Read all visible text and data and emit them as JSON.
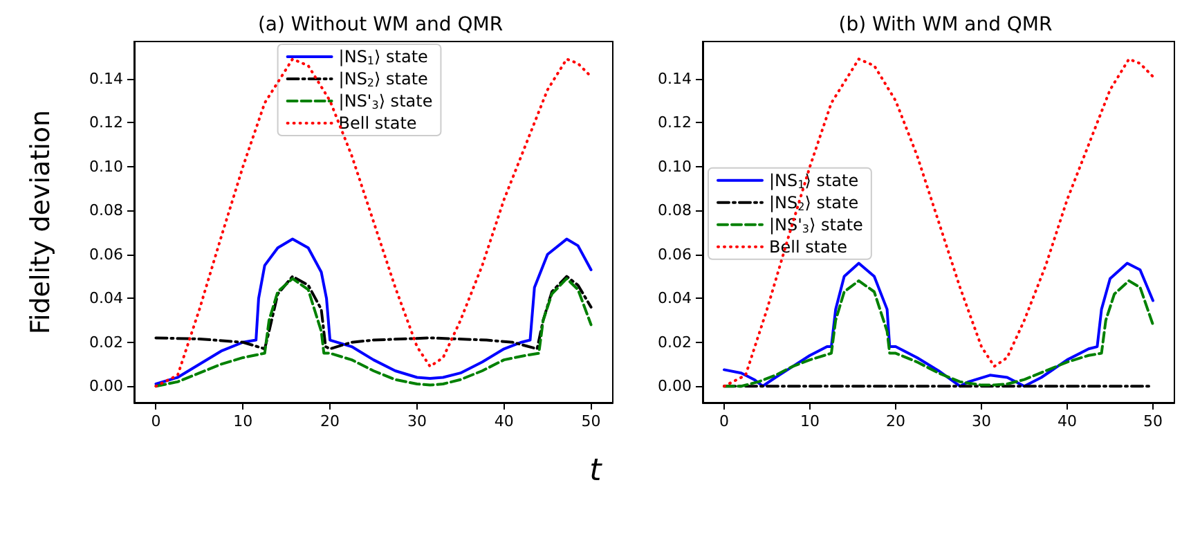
{
  "chart_data": [
    {
      "type": "line",
      "title": "(a) Without WM and QMR",
      "xlabel": "t",
      "ylabel": "Fidelity deviation",
      "xlim": [
        -2.5,
        52.5
      ],
      "ylim": [
        -0.0075,
        0.157
      ],
      "xticks": [
        0,
        10,
        20,
        30,
        40,
        50
      ],
      "yticks": [
        {
          "value": 0,
          "label": "0.00"
        },
        {
          "value": 0.02,
          "label": "0.02"
        },
        {
          "value": 0.04,
          "label": "0.04"
        },
        {
          "value": 0.06,
          "label": "0.06"
        },
        {
          "value": 0.08,
          "label": "0.08"
        },
        {
          "value": 0.1,
          "label": "0.10"
        },
        {
          "value": 0.12,
          "label": "0.12"
        },
        {
          "value": 0.14,
          "label": "0.14"
        }
      ],
      "grid": false,
      "legend": "top",
      "marker": "none",
      "series": [
        {
          "name": "|NS$_{1}$⟩ state",
          "color": "#0000ff",
          "line_style": "solid",
          "x": [
            0,
            2.5,
            5,
            7.5,
            10,
            11.5,
            11.8,
            12.5,
            14,
            15.7,
            17.5,
            19,
            19.6,
            20,
            22.5,
            25,
            27.5,
            30,
            31.5,
            33,
            35,
            37.5,
            40,
            42,
            43,
            43.5,
            45,
            47.2,
            48.5,
            50
          ],
          "values": [
            0.001,
            0.004,
            0.01,
            0.016,
            0.02,
            0.021,
            0.04,
            0.055,
            0.063,
            0.067,
            0.063,
            0.052,
            0.04,
            0.021,
            0.018,
            0.012,
            0.007,
            0.004,
            0.0035,
            0.004,
            0.006,
            0.011,
            0.017,
            0.02,
            0.021,
            0.045,
            0.06,
            0.067,
            0.064,
            0.053
          ]
        },
        {
          "name": "|NS$_{2}$⟩ state",
          "color": "#000000",
          "line_style": "dashdot",
          "x": [
            0,
            5,
            10,
            12.5,
            13,
            14,
            15.7,
            17.5,
            19,
            19.5,
            20,
            22.5,
            25,
            31.5,
            38,
            41,
            43.8,
            44.5,
            45.5,
            47.2,
            48.5,
            50
          ],
          "values": [
            0.022,
            0.0215,
            0.02,
            0.017,
            0.025,
            0.042,
            0.05,
            0.046,
            0.035,
            0.018,
            0.017,
            0.02,
            0.021,
            0.022,
            0.021,
            0.02,
            0.017,
            0.03,
            0.043,
            0.05,
            0.046,
            0.036
          ]
        },
        {
          "name": "|NS'$_{3}$⟩ state",
          "color": "#008000",
          "line_style": "dashed",
          "x": [
            0,
            2.5,
            5,
            7.5,
            10,
            12.5,
            13,
            14,
            15.7,
            17.5,
            19,
            19.3,
            20,
            22.5,
            25,
            27.5,
            30,
            31.5,
            33,
            35,
            37.5,
            40,
            42.5,
            44,
            44.5,
            45.5,
            47.2,
            48.5,
            50
          ],
          "values": [
            0,
            0.002,
            0.006,
            0.01,
            0.013,
            0.015,
            0.03,
            0.043,
            0.049,
            0.044,
            0.025,
            0.015,
            0.015,
            0.012,
            0.007,
            0.003,
            0.001,
            0.0005,
            0.001,
            0.003,
            0.007,
            0.012,
            0.014,
            0.015,
            0.03,
            0.042,
            0.049,
            0.044,
            0.028
          ]
        },
        {
          "name": "Bell state",
          "color": "#ff0000",
          "line_style": "dotted",
          "x": [
            0,
            2.5,
            5,
            7.5,
            10,
            12.5,
            15.7,
            17.5,
            20,
            22.5,
            25,
            27.5,
            30,
            31.5,
            33,
            35,
            37.5,
            40,
            42.5,
            45,
            47.2,
            48.5,
            50
          ],
          "values": [
            0,
            0.005,
            0.035,
            0.068,
            0.1,
            0.129,
            0.149,
            0.146,
            0.13,
            0.105,
            0.075,
            0.045,
            0.018,
            0.009,
            0.013,
            0.03,
            0.055,
            0.085,
            0.11,
            0.135,
            0.149,
            0.147,
            0.141
          ]
        }
      ]
    },
    {
      "type": "line",
      "title": "(b) With WM and QMR",
      "xlim": [
        -2.5,
        52.5
      ],
      "ylim": [
        -0.0075,
        0.157
      ],
      "xticks": [
        0,
        10,
        20,
        30,
        40,
        50
      ],
      "yticks": [
        {
          "value": 0,
          "label": "0.00"
        },
        {
          "value": 0.02,
          "label": "0.02"
        },
        {
          "value": 0.04,
          "label": "0.04"
        },
        {
          "value": 0.06,
          "label": "0.06"
        },
        {
          "value": 0.08,
          "label": "0.08"
        },
        {
          "value": 0.1,
          "label": "0.10"
        },
        {
          "value": 0.12,
          "label": "0.12"
        },
        {
          "value": 0.14,
          "label": "0.14"
        }
      ],
      "grid": false,
      "legend": "center left",
      "marker": "none",
      "series": [
        {
          "name": "|NS$_{1}$⟩ state",
          "color": "#0000ff",
          "line_style": "solid",
          "x": [
            0,
            2,
            3.5,
            4.5,
            6,
            8,
            10,
            12,
            12.5,
            13,
            14,
            15.7,
            17.5,
            19,
            19.3,
            20,
            22.5,
            25,
            27.5,
            28.5,
            31,
            33,
            35,
            37,
            40,
            42.5,
            43.5,
            44,
            45,
            47,
            48.5,
            50
          ],
          "values": [
            0.0075,
            0.006,
            0.003,
            0,
            0.004,
            0.009,
            0.014,
            0.018,
            0.018,
            0.035,
            0.05,
            0.056,
            0.05,
            0.035,
            0.018,
            0.018,
            0.013,
            0.007,
            0,
            0.002,
            0.005,
            0.004,
            0,
            0.004,
            0.012,
            0.017,
            0.018,
            0.035,
            0.049,
            0.056,
            0.053,
            0.039
          ]
        },
        {
          "name": "|NS$_{2}$⟩ state",
          "color": "#000000",
          "line_style": "dashdot",
          "x": [
            0,
            50
          ],
          "values": [
            0,
            0
          ]
        },
        {
          "name": "|NS'$_{3}$⟩ state",
          "color": "#008000",
          "line_style": "dashed",
          "x": [
            0,
            2,
            4,
            6,
            8,
            10,
            12.5,
            13,
            14,
            15.7,
            17.5,
            19,
            19.3,
            20,
            22.5,
            25,
            27.5,
            30,
            31.5,
            33,
            35,
            37.5,
            40,
            42.5,
            44,
            44.5,
            45.5,
            47.2,
            48.5,
            50
          ],
          "values": [
            0,
            0,
            0.002,
            0.005,
            0.009,
            0.012,
            0.015,
            0.03,
            0.043,
            0.048,
            0.043,
            0.025,
            0.015,
            0.015,
            0.011,
            0.006,
            0.002,
            0.0005,
            0.0005,
            0.001,
            0.003,
            0.007,
            0.011,
            0.014,
            0.015,
            0.03,
            0.042,
            0.048,
            0.045,
            0.028
          ]
        },
        {
          "name": "Bell state",
          "color": "#ff0000",
          "line_style": "dotted",
          "x": [
            0,
            2.5,
            5,
            7.5,
            10,
            12.5,
            15.7,
            17.5,
            20,
            22.5,
            25,
            27.5,
            30,
            31.5,
            33,
            35,
            37.5,
            40,
            42.5,
            45,
            47.2,
            48.5,
            50
          ],
          "values": [
            0,
            0.005,
            0.035,
            0.068,
            0.1,
            0.129,
            0.149,
            0.146,
            0.13,
            0.105,
            0.075,
            0.045,
            0.018,
            0.009,
            0.013,
            0.03,
            0.055,
            0.085,
            0.11,
            0.135,
            0.149,
            0.147,
            0.141
          ]
        }
      ]
    }
  ]
}
